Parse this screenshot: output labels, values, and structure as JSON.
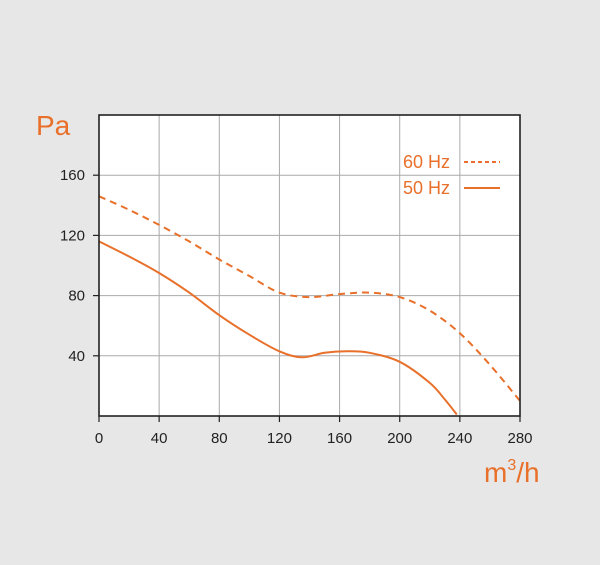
{
  "chart_data": {
    "type": "line",
    "xunit": "m",
    "xunit_sup": "3",
    "xunit_tail": "/h",
    "yunit": "Pa",
    "xlim": [
      0,
      280
    ],
    "ylim": [
      0,
      200
    ],
    "xticks": [
      0,
      40,
      80,
      120,
      160,
      200,
      240,
      280
    ],
    "yticks": [
      40,
      80,
      120,
      160
    ],
    "grid": true,
    "legend_position": "top-right",
    "colors": {
      "series": "#e8702a",
      "grid": "#aaaaaa",
      "frame": "#222222",
      "background": "#ffffff"
    },
    "series": [
      {
        "name": "60 Hz",
        "style": "dashed",
        "x": [
          0,
          20,
          40,
          60,
          80,
          100,
          120,
          140,
          160,
          180,
          200,
          220,
          240,
          260,
          280
        ],
        "y": [
          146,
          137,
          127,
          116,
          104,
          93,
          82,
          79,
          81,
          82,
          79,
          70,
          55,
          34,
          10
        ]
      },
      {
        "name": "50 Hz",
        "style": "solid",
        "x": [
          0,
          20,
          40,
          60,
          80,
          100,
          120,
          135,
          150,
          165,
          180,
          200,
          220,
          230,
          238
        ],
        "y": [
          116,
          106,
          95,
          82,
          67,
          54,
          43,
          39,
          42,
          43,
          42,
          36,
          22,
          11,
          1
        ]
      }
    ]
  }
}
